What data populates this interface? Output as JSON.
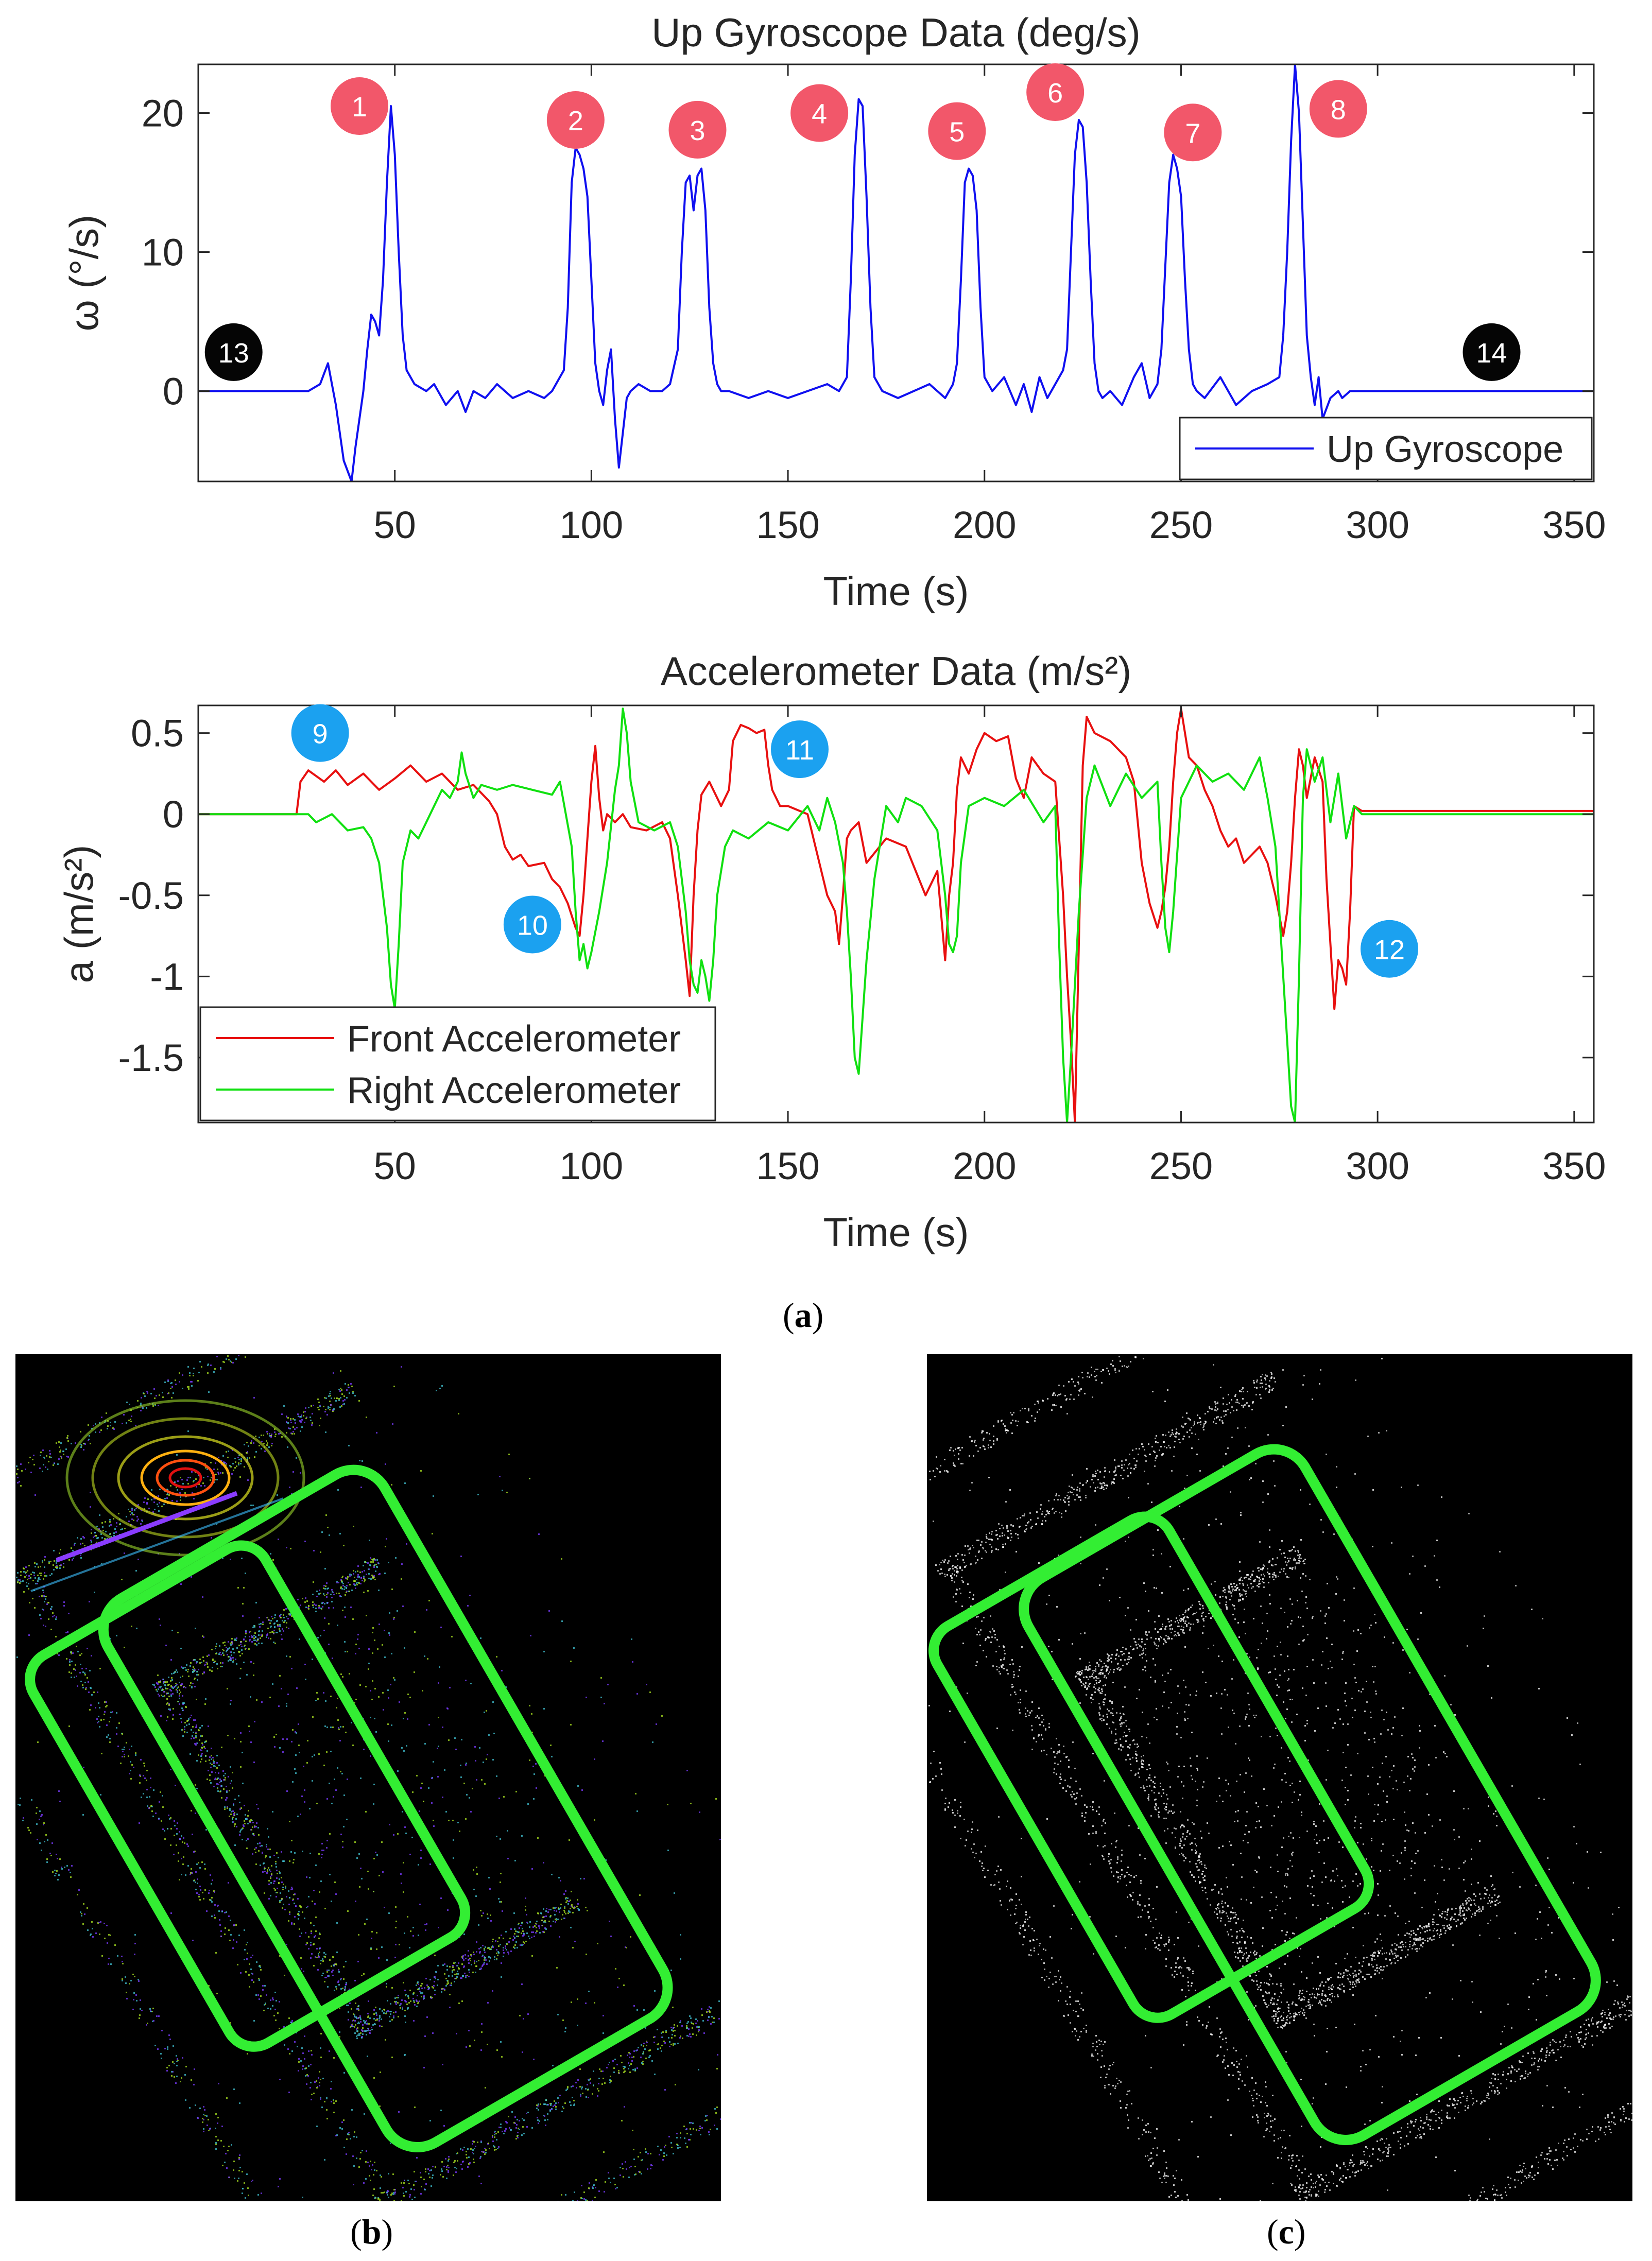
{
  "figure": {
    "label_a": "a",
    "label_b": "b",
    "label_c": "c"
  },
  "chart_data": [
    {
      "type": "line",
      "title": "Up Gyroscope Data (deg/s)",
      "xlabel": "Time (s)",
      "ylabel": "ω (°/s)",
      "xlim": [
        0,
        355
      ],
      "ylim": [
        -6.5,
        23.5
      ],
      "xticks": [
        50,
        100,
        150,
        200,
        250,
        300,
        350
      ],
      "yticks": [
        0,
        10,
        20
      ],
      "legend_position": "bottom-right",
      "series": [
        {
          "name": "Up Gyroscope",
          "color": "#1010f0",
          "x": [
            0,
            28,
            31,
            33,
            35,
            37,
            39,
            40,
            42,
            43,
            44,
            45,
            46,
            47,
            48,
            49,
            50,
            51,
            52,
            53,
            55,
            58,
            60,
            63,
            66,
            68,
            70,
            73,
            76,
            80,
            84,
            88,
            90,
            93,
            94,
            95,
            96,
            97,
            98,
            99,
            100,
            101,
            102,
            103,
            104,
            105,
            106,
            107,
            108,
            109,
            110,
            112,
            115,
            118,
            120,
            122,
            123,
            124,
            125,
            126,
            127,
            128,
            129,
            130,
            131,
            132,
            133,
            135,
            140,
            145,
            150,
            155,
            160,
            163,
            165,
            166,
            167,
            168,
            169,
            170,
            171,
            172,
            174,
            178,
            182,
            186,
            190,
            192,
            193,
            194,
            195,
            196,
            197,
            198,
            199,
            200,
            202,
            205,
            208,
            210,
            212,
            214,
            216,
            218,
            220,
            221,
            222,
            223,
            224,
            225,
            226,
            227,
            228,
            229,
            230,
            232,
            235,
            238,
            240,
            242,
            244,
            245,
            246,
            247,
            248,
            249,
            250,
            251,
            252,
            253,
            254,
            256,
            260,
            264,
            268,
            272,
            275,
            276,
            277,
            278,
            279,
            280,
            281,
            282,
            283,
            284,
            285,
            286,
            288,
            290,
            291,
            293,
            300,
            320,
            355
          ],
          "y": [
            0,
            0,
            0.5,
            2,
            -1,
            -5,
            -6.5,
            -4,
            0,
            3,
            5.5,
            5,
            4,
            8,
            15,
            20.5,
            17,
            10,
            4,
            1.5,
            0.5,
            0,
            0.5,
            -1,
            0,
            -1.5,
            0,
            -0.5,
            0.5,
            -0.5,
            0,
            -0.5,
            0,
            1.5,
            6,
            15,
            17.5,
            17,
            16,
            14,
            8,
            2,
            0,
            -1,
            1.5,
            3,
            -2,
            -5.5,
            -3,
            -0.5,
            0,
            0.5,
            0,
            0,
            0.5,
            3,
            10,
            15,
            15.5,
            13,
            15.5,
            16,
            13,
            6,
            2,
            0.5,
            0,
            0,
            -0.5,
            0,
            -0.5,
            0,
            0.5,
            0,
            1,
            8,
            17,
            21,
            20.5,
            14,
            6,
            1,
            0,
            -0.5,
            0,
            0.5,
            -0.5,
            0.5,
            2,
            8,
            15,
            16,
            15.5,
            13,
            6,
            1,
            0,
            1,
            -1,
            0.5,
            -1.5,
            1,
            -0.5,
            0.5,
            1.5,
            3,
            10,
            17,
            19.5,
            19,
            15,
            8,
            2,
            0,
            -0.5,
            0,
            -1,
            1,
            2,
            -0.5,
            0.5,
            3,
            9,
            15,
            17,
            16,
            14,
            8,
            3,
            0.5,
            0,
            -0.5,
            1,
            -1,
            0,
            0.5,
            1,
            4,
            10,
            18,
            23.5,
            20,
            12,
            4,
            1,
            -1,
            1,
            -2,
            -0.5,
            0,
            -0.5,
            0,
            0,
            0,
            0
          ]
        }
      ],
      "annotations": [
        {
          "text": "1",
          "style": "red",
          "x": 41,
          "y": 20.5
        },
        {
          "text": "2",
          "style": "red",
          "x": 96,
          "y": 19.5
        },
        {
          "text": "3",
          "style": "red",
          "x": 127,
          "y": 18.8
        },
        {
          "text": "4",
          "style": "red",
          "x": 158,
          "y": 20
        },
        {
          "text": "5",
          "style": "red",
          "x": 193,
          "y": 18.7
        },
        {
          "text": "6",
          "style": "red",
          "x": 218,
          "y": 21.5
        },
        {
          "text": "7",
          "style": "red",
          "x": 253,
          "y": 18.6
        },
        {
          "text": "8",
          "style": "red",
          "x": 290,
          "y": 20.3
        },
        {
          "text": "13",
          "style": "black",
          "x": 9,
          "y": 2.8
        },
        {
          "text": "14",
          "style": "black",
          "x": 329,
          "y": 2.8
        }
      ]
    },
    {
      "type": "line",
      "title": "Accelerometer Data (m/s²)",
      "xlabel": "Time (s)",
      "ylabel": "a (m/s²)",
      "xlim": [
        0,
        355
      ],
      "ylim": [
        -1.9,
        0.67
      ],
      "xticks": [
        50,
        100,
        150,
        200,
        250,
        300,
        350
      ],
      "yticks": [
        0.5,
        0,
        -0.5,
        -1,
        -1.5
      ],
      "legend_position": "bottom-left",
      "series": [
        {
          "name": "Front Accelerometer",
          "color": "#e81010",
          "x": [
            0,
            25,
            26,
            28,
            32,
            35,
            38,
            42,
            46,
            50,
            54,
            58,
            62,
            66,
            70,
            74,
            76,
            78,
            80,
            82,
            84,
            88,
            90,
            92,
            94,
            96,
            97,
            98,
            99,
            100,
            101,
            102,
            103,
            104,
            106,
            108,
            110,
            114,
            118,
            120,
            122,
            124,
            125,
            126,
            127,
            128,
            130,
            133,
            135,
            136,
            138,
            140,
            142,
            144,
            145,
            146,
            147,
            148,
            150,
            155,
            160,
            162,
            163,
            164,
            165,
            166,
            168,
            170,
            175,
            180,
            185,
            188,
            190,
            191,
            192,
            193,
            194,
            196,
            198,
            200,
            203,
            206,
            208,
            210,
            212,
            215,
            218,
            220,
            221,
            222,
            223,
            224,
            225,
            226,
            228,
            232,
            236,
            238,
            240,
            242,
            244,
            245,
            246,
            247,
            248,
            249,
            250,
            251,
            252,
            254,
            256,
            258,
            260,
            262,
            264,
            266,
            268,
            270,
            272,
            274,
            276,
            277,
            278,
            279,
            280,
            281,
            282,
            284,
            286,
            287,
            288,
            289,
            290,
            291,
            292,
            293,
            294,
            296,
            300,
            330,
            355
          ],
          "y": [
            0,
            0,
            0.2,
            0.27,
            0.2,
            0.27,
            0.18,
            0.25,
            0.15,
            0.22,
            0.3,
            0.2,
            0.25,
            0.15,
            0.18,
            0.08,
            0,
            -0.2,
            -0.28,
            -0.25,
            -0.32,
            -0.3,
            -0.4,
            -0.45,
            -0.55,
            -0.7,
            -0.75,
            -0.5,
            -0.15,
            0.2,
            0.42,
            0.1,
            -0.1,
            0,
            -0.05,
            0,
            -0.08,
            -0.1,
            -0.05,
            -0.15,
            -0.5,
            -0.9,
            -1.12,
            -0.5,
            -0.1,
            0.12,
            0.2,
            0.05,
            0.15,
            0.45,
            0.55,
            0.53,
            0.5,
            0.52,
            0.3,
            0.15,
            0.1,
            0.05,
            0.05,
            0,
            -0.5,
            -0.6,
            -0.8,
            -0.5,
            -0.15,
            -0.1,
            -0.05,
            -0.3,
            -0.15,
            -0.2,
            -0.5,
            -0.35,
            -0.9,
            -0.5,
            -0.3,
            0.15,
            0.35,
            0.25,
            0.4,
            0.5,
            0.45,
            0.48,
            0.22,
            0.1,
            0.35,
            0.25,
            0.2,
            -0.5,
            -1.0,
            -1.4,
            -1.9,
            -0.8,
            0.3,
            0.6,
            0.5,
            0.45,
            0.35,
            0.2,
            -0.3,
            -0.55,
            -0.7,
            -0.6,
            -0.45,
            -0.2,
            0.2,
            0.5,
            0.65,
            0.5,
            0.35,
            0.3,
            0.15,
            0.05,
            -0.1,
            -0.2,
            -0.15,
            -0.3,
            -0.25,
            -0.2,
            -0.3,
            -0.5,
            -0.75,
            -0.6,
            -0.3,
            0.1,
            0.4,
            0.3,
            0.1,
            0.35,
            0.2,
            -0.4,
            -0.8,
            -1.2,
            -0.9,
            -0.95,
            -1.05,
            -0.6,
            0.05,
            0.02,
            0.02,
            0.02,
            0.02
          ]
        },
        {
          "name": "Right Accelerometer",
          "color": "#10e010",
          "x": [
            0,
            28,
            30,
            34,
            38,
            42,
            44,
            46,
            48,
            49,
            50,
            51,
            52,
            54,
            56,
            58,
            60,
            62,
            64,
            66,
            67,
            68,
            70,
            72,
            76,
            80,
            85,
            90,
            92,
            95,
            96,
            97,
            98,
            99,
            100,
            102,
            104,
            106,
            107,
            108,
            109,
            110,
            112,
            116,
            120,
            122,
            124,
            125,
            126,
            127,
            128,
            129,
            130,
            131,
            132,
            134,
            136,
            140,
            145,
            150,
            155,
            158,
            160,
            162,
            164,
            165,
            166,
            167,
            168,
            170,
            172,
            175,
            178,
            180,
            184,
            188,
            190,
            191,
            192,
            193,
            194,
            196,
            200,
            205,
            210,
            215,
            218,
            219,
            220,
            221,
            222,
            224,
            226,
            228,
            232,
            236,
            240,
            244,
            245,
            246,
            247,
            248,
            250,
            254,
            258,
            262,
            266,
            270,
            272,
            274,
            275,
            276,
            277,
            278,
            279,
            280,
            281,
            282,
            284,
            286,
            288,
            290,
            292,
            294,
            296,
            300,
            330,
            355
          ],
          "y": [
            0,
            0,
            -0.05,
            0,
            -0.1,
            -0.08,
            -0.15,
            -0.3,
            -0.7,
            -1.05,
            -1.2,
            -0.8,
            -0.3,
            -0.1,
            -0.15,
            -0.05,
            0.05,
            0.15,
            0.1,
            0.2,
            0.38,
            0.25,
            0.1,
            0.18,
            0.15,
            0.18,
            0.15,
            0.12,
            0.2,
            -0.2,
            -0.6,
            -0.9,
            -0.8,
            -0.95,
            -0.85,
            -0.6,
            -0.3,
            0.15,
            0.3,
            0.65,
            0.5,
            0.2,
            -0.05,
            -0.1,
            -0.05,
            -0.2,
            -0.6,
            -0.9,
            -1.05,
            -1.1,
            -0.9,
            -1.0,
            -1.15,
            -0.9,
            -0.5,
            -0.2,
            -0.1,
            -0.15,
            -0.05,
            -0.1,
            0.05,
            -0.1,
            0.1,
            -0.05,
            -0.3,
            -0.6,
            -1.0,
            -1.5,
            -1.6,
            -0.9,
            -0.4,
            0.05,
            -0.05,
            0.1,
            0.05,
            -0.1,
            -0.5,
            -0.8,
            -0.85,
            -0.75,
            -0.3,
            0.05,
            0.1,
            0.05,
            0.15,
            -0.05,
            0.05,
            -0.8,
            -1.5,
            -1.9,
            -1.5,
            -0.6,
            0.1,
            0.3,
            0.05,
            0.25,
            0.1,
            0.2,
            -0.3,
            -0.7,
            -0.85,
            -0.6,
            0.1,
            0.3,
            0.2,
            0.25,
            0.15,
            0.35,
            0.1,
            -0.2,
            -0.6,
            -1.0,
            -1.4,
            -1.8,
            -1.9,
            -1.0,
            0.1,
            0.4,
            0.2,
            0.35,
            -0.05,
            0.25,
            -0.15,
            0.05,
            0,
            0,
            0,
            0
          ]
        }
      ],
      "annotations": [
        {
          "text": "9",
          "style": "blue",
          "x": 31,
          "y": 0.5
        },
        {
          "text": "10",
          "style": "blue",
          "x": 85,
          "y": -0.68
        },
        {
          "text": "11",
          "style": "blue",
          "x": 153,
          "y": 0.4
        },
        {
          "text": "12",
          "style": "blue",
          "x": 303,
          "y": -0.83
        }
      ]
    }
  ],
  "maps": [
    {
      "name": "map-b",
      "background": "#000000",
      "trajectory_color": "#33ee33",
      "cloud_colors": [
        "#a8e020",
        "#40c0d0",
        "#7a3bff"
      ]
    },
    {
      "name": "map-c",
      "background": "#000000",
      "trajectory_color": "#33ee33",
      "cloud_colors": [
        "#ffffff",
        "#cfcfcf"
      ]
    }
  ]
}
